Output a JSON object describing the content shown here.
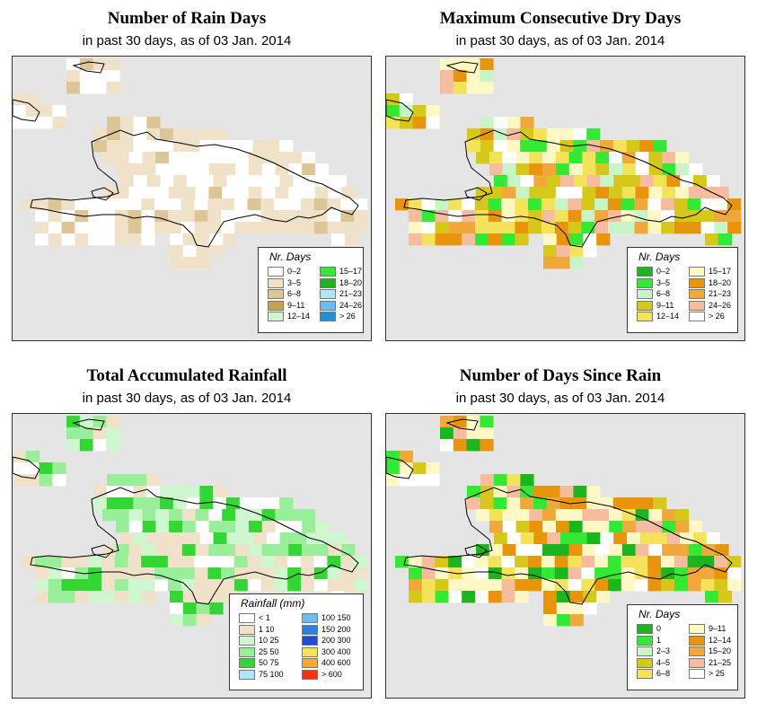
{
  "panels": [
    {
      "title": "Number of Rain Days",
      "subtitle": "in past 30 days, as of  03 Jan. 2014",
      "legend": {
        "title": "Nr. Days",
        "items": [
          {
            "label": "0–2",
            "color": "#ffffff"
          },
          {
            "label": "3–5",
            "color": "#f0e2c8"
          },
          {
            "label": "6–8",
            "color": "#dcc596"
          },
          {
            "label": "9–11",
            "color": "#c8a050"
          },
          {
            "label": "12–14",
            "color": "#cff7cf"
          },
          {
            "label": "15–17",
            "color": "#33e933"
          },
          {
            "label": "18–20",
            "color": "#1db51d"
          },
          {
            "label": "21–23",
            "color": "#aee8f8"
          },
          {
            "label": "24–26",
            "color": "#66bff0"
          },
          {
            "label": "> 26",
            "color": "#1f90d8"
          }
        ]
      }
    },
    {
      "title": "Maximum Consecutive Dry Days",
      "subtitle": "in past 30 days, as of  03 Jan. 2014",
      "legend": {
        "title": "Nr. Days",
        "items": [
          {
            "label": "0–2",
            "color": "#1db51d"
          },
          {
            "label": "3–5",
            "color": "#33e933"
          },
          {
            "label": "6–8",
            "color": "#c8f5c8"
          },
          {
            "label": "9–11",
            "color": "#d6c81a"
          },
          {
            "label": "12–14",
            "color": "#f4e35a"
          },
          {
            "label": "15–17",
            "color": "#fff8c4"
          },
          {
            "label": "18–20",
            "color": "#e8950c"
          },
          {
            "label": "21–23",
            "color": "#f0a83a"
          },
          {
            "label": "24–26",
            "color": "#f7bca0"
          },
          {
            "label": "> 26",
            "color": "#ffffff"
          }
        ]
      }
    },
    {
      "title": "Total Accumulated Rainfall",
      "subtitle": "in past 30 days, as of  03 Jan. 2014",
      "legend": {
        "title": "Rainfall (mm)",
        "items": [
          {
            "label": "< 1",
            "color": "#ffffff"
          },
          {
            "label": "1    10",
            "color": "#f0e2c8"
          },
          {
            "label": "10    25",
            "color": "#cff7cf"
          },
          {
            "label": "25    50",
            "color": "#99ee99"
          },
          {
            "label": "50    75",
            "color": "#33d633"
          },
          {
            "label": "75   100",
            "color": "#aee8f8"
          },
          {
            "label": "100   150",
            "color": "#66bff0"
          },
          {
            "label": "150   200",
            "color": "#2a7fe0"
          },
          {
            "label": "200   300",
            "color": "#1a4fd0"
          },
          {
            "label": "300   400",
            "color": "#f4e35a"
          },
          {
            "label": "400   600",
            "color": "#f0a83a"
          },
          {
            "label": "> 600",
            "color": "#ff3010"
          }
        ]
      }
    },
    {
      "title": "Number of Days Since Rain",
      "subtitle": "in past 30 days, as of  03 Jan. 2014",
      "legend": {
        "title": "Nr. Days",
        "items": [
          {
            "label": "0",
            "color": "#1db51d"
          },
          {
            "label": "1",
            "color": "#33e933"
          },
          {
            "label": "2–3",
            "color": "#c8f5c8"
          },
          {
            "label": "4–5",
            "color": "#d6c81a"
          },
          {
            "label": "6–8",
            "color": "#f4e35a"
          },
          {
            "label": "9–11",
            "color": "#fff8c4"
          },
          {
            "label": "12–14",
            "color": "#e8950c"
          },
          {
            "label": "15–20",
            "color": "#f0a83a"
          },
          {
            "label": "21–25",
            "color": "#f7bca0"
          },
          {
            "label": "> 25",
            "color": "#ffffff"
          }
        ]
      }
    }
  ]
}
